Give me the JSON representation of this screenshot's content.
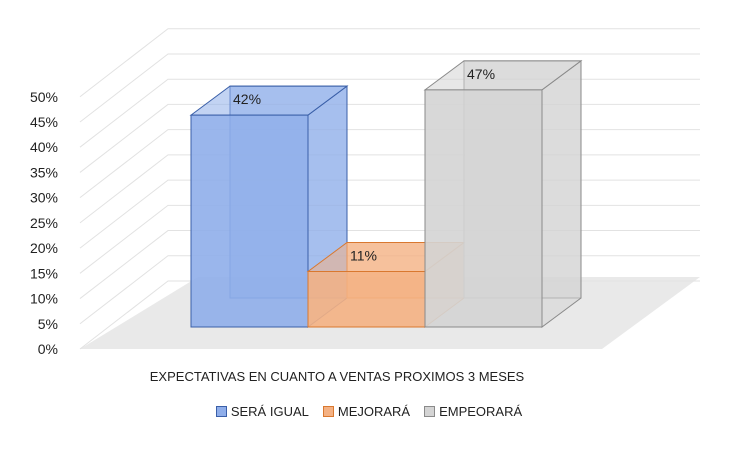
{
  "chart_data": {
    "type": "bar",
    "view": "3d-clustered-column",
    "xlabel": "EXPECTATIVAS EN CUANTO A VENTAS PROXIMOS 3 MESES",
    "ylabel": "",
    "ylim": [
      0,
      50
    ],
    "yticks": [
      "0%",
      "5%",
      "10%",
      "15%",
      "20%",
      "25%",
      "30%",
      "35%",
      "40%",
      "45%",
      "50%"
    ],
    "grid": true,
    "legend_position": "bottom",
    "series": [
      {
        "name": "SERÁ IGUAL",
        "value": 42,
        "label": "42%",
        "color": "#8FAEEA",
        "stroke": "#3A5FA8"
      },
      {
        "name": "MEJORARÁ",
        "value": 11,
        "label": "11%",
        "color": "#F4B183",
        "stroke": "#D9782F"
      },
      {
        "name": "EMPEORARÁ",
        "value": 47,
        "label": "47%",
        "color": "#D4D4D4",
        "stroke": "#8A8A8A"
      }
    ]
  }
}
